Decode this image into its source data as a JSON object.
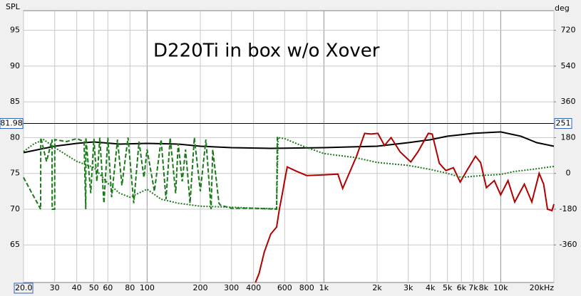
{
  "chart_data": {
    "type": "line",
    "title": "D220Ti in box w/o Xover",
    "y_label": "SPL",
    "y2_label": "deg",
    "log_x": true,
    "grid": true,
    "xlim": [
      20,
      20000
    ],
    "ylim": [
      59.75,
      97.75
    ],
    "y2lim": [
      -549,
      819
    ],
    "xticks": [
      {
        "value": 20,
        "label": "20.0"
      },
      30,
      40,
      50,
      60,
      80,
      100,
      200,
      300,
      400,
      600,
      800,
      {
        "value": 1000,
        "label": "1k"
      },
      {
        "value": 2000,
        "label": "2k"
      },
      {
        "value": 3000,
        "label": "3k"
      },
      {
        "value": 4000,
        "label": "4k"
      },
      {
        "value": 5000,
        "label": "5k"
      },
      {
        "value": 6000,
        "label": "6k"
      },
      {
        "value": 7000,
        "label": "7k"
      },
      {
        "value": 8000,
        "label": "8k"
      },
      {
        "value": 10000,
        "label": "10k"
      },
      {
        "value": 20000,
        "label": "20kHz"
      }
    ],
    "yticks": [
      65,
      70,
      75,
      80,
      85,
      90,
      95
    ],
    "y2ticks": [
      -360,
      -180,
      0,
      180,
      360,
      540,
      720
    ],
    "cursor": {
      "y": 81.98,
      "y2": 251
    },
    "series": [
      {
        "color": "#000000",
        "style": "solid",
        "width": 2,
        "x": [
          20,
          30,
          40,
          50,
          70,
          100,
          150,
          200,
          300,
          500,
          1000,
          2000,
          3000,
          4000,
          5000,
          7000,
          10000,
          13000,
          16000,
          20000
        ],
        "values": [
          77.9,
          78.8,
          79.2,
          79.4,
          79.1,
          79.2,
          79.1,
          78.8,
          78.6,
          78.5,
          78.6,
          78.8,
          79.3,
          79.7,
          80.2,
          80.6,
          80.8,
          80.2,
          79.3,
          78.8
        ]
      },
      {
        "color": "#b00000",
        "style": "solid",
        "width": 2,
        "x": [
          410,
          430,
          460,
          500,
          540,
          560,
          580,
          600,
          620,
          700,
          800,
          1000,
          1200,
          1277,
          1530,
          1700,
          1850,
          2020,
          2200,
          2400,
          2700,
          3100,
          3400,
          3900,
          4100,
          4500,
          4900,
          5400,
          5900,
          6400,
          7200,
          7700,
          8300,
          9200,
          10000,
          11000,
          12000,
          13600,
          15000,
          16500,
          17500,
          18400,
          19500,
          20000
        ],
        "values": [
          59.75,
          61,
          64,
          66.5,
          67.5,
          70,
          72,
          74,
          75.9,
          75.3,
          74.7,
          74.8,
          74.9,
          72.9,
          77.4,
          80.6,
          80.5,
          80.6,
          78.9,
          80,
          78,
          76.6,
          78,
          80.6,
          80.5,
          76.4,
          75.4,
          75.8,
          73.8,
          75.3,
          77.4,
          76.5,
          73,
          74,
          72,
          74,
          71,
          73.5,
          71,
          75,
          73.5,
          70,
          69.8,
          70.7
        ]
      },
      {
        "color": "#1a7a1a",
        "style": "dashed",
        "width": 2,
        "axis": "y2",
        "x": [
          20,
          22,
          24,
          25,
          25.05,
          27,
          29,
          29.05,
          30,
          30.05,
          35,
          40,
          44,
          45,
          45.05,
          48,
          50,
          52,
          54,
          57,
          60,
          63,
          68,
          72,
          78,
          84,
          90,
          96,
          100,
          110,
          120,
          128,
          135,
          145,
          150,
          158,
          165,
          175,
          185,
          200,
          215,
          230,
          235,
          255,
          260,
          300,
          400,
          540,
          545,
          560
        ],
        "values": [
          -20,
          -90,
          -150,
          -180,
          180,
          60,
          170,
          -180,
          -180,
          170,
          160,
          175,
          160,
          -180,
          180,
          -100,
          175,
          -40,
          180,
          -150,
          180,
          -120,
          170,
          -60,
          180,
          -150,
          160,
          -20,
          120,
          -90,
          170,
          -130,
          180,
          -100,
          150,
          -40,
          120,
          -150,
          180,
          -90,
          170,
          -180,
          120,
          -150,
          -160,
          -175,
          -175,
          -180,
          180,
          180
        ]
      },
      {
        "color": "#1a7a1a",
        "style": "dotted",
        "width": 2,
        "axis": "y2",
        "x": [
          20,
          23,
          26,
          30,
          40,
          50,
          60,
          70,
          80,
          100,
          120,
          150,
          200,
          300,
          400,
          540,
          550,
          600,
          700,
          800,
          1000,
          1500,
          2000,
          3000,
          4000,
          5000,
          6000,
          8000,
          10000,
          12000,
          15000,
          20000
        ],
        "values": [
          110,
          150,
          170,
          130,
          60,
          30,
          -50,
          -100,
          -120,
          -80,
          -130,
          -150,
          -165,
          -170,
          -175,
          -178,
          180,
          175,
          150,
          130,
          100,
          80,
          55,
          40,
          20,
          0,
          -20,
          -10,
          -5,
          10,
          20,
          35
        ]
      }
    ]
  }
}
